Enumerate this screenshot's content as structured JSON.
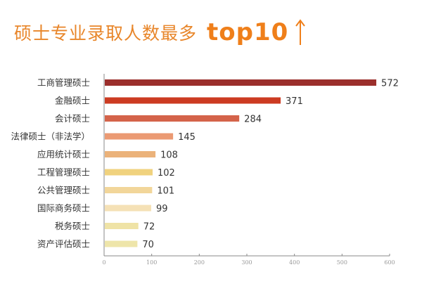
{
  "chart_data": {
    "type": "bar",
    "orientation": "horizontal",
    "title": "硕士专业录取人数最多",
    "title_highlight": "top10",
    "categories": [
      "工商管理硕士",
      "金融硕士",
      "会计硕士",
      "法律硕士（非法学）",
      "应用统计硕士",
      "工程管理硕士",
      "公共管理硕士",
      "国际商务硕士",
      "税务硕士",
      "资产评估硕士"
    ],
    "values": [
      572,
      371,
      284,
      145,
      108,
      102,
      101,
      99,
      72,
      70
    ],
    "colors": [
      "#9b2f2c",
      "#cc3b22",
      "#d4634a",
      "#eb9a73",
      "#ebb27a",
      "#f0d27e",
      "#f2d69a",
      "#f5e1b6",
      "#efe3a6",
      "#eee5aa"
    ],
    "xlim": [
      0,
      600
    ],
    "xticks": [
      0,
      100,
      200,
      300,
      400,
      500,
      600
    ],
    "xlabel": "",
    "ylabel": "",
    "grid": false,
    "title_color": "#ef7f1a"
  }
}
